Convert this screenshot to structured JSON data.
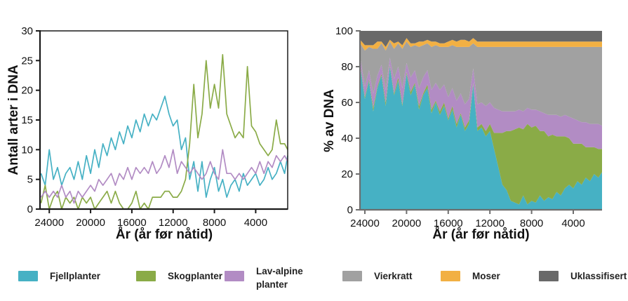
{
  "figure": {
    "background": "#ffffff"
  },
  "colors": {
    "fjellplanter": "#46b1c4",
    "skogplanter": "#8aab47",
    "lav_alpine": "#b28cc4",
    "vierkratt": "#a1a1a1",
    "moser": "#f2b043",
    "uklassifisert": "#696969",
    "axis_text": "#111111",
    "spine_left_chart": "#1a1a1a",
    "spine_right_chart": "#6e6e6e"
  },
  "legend": {
    "items": [
      {
        "id": "fjellplanter",
        "label": "Fjellplanter",
        "color": "#46b1c4"
      },
      {
        "id": "skogplanter",
        "label": "Skogplanter",
        "color": "#8aab47"
      },
      {
        "id": "lav-alpine",
        "label": "Lav-alpine planter",
        "color": "#b28cc4"
      },
      {
        "id": "vierkratt",
        "label": "Vierkratt",
        "color": "#a1a1a1"
      },
      {
        "id": "moser",
        "label": "Moser",
        "color": "#f2b043"
      },
      {
        "id": "uklassifisert",
        "label": "Uklassifisert",
        "color": "#696969"
      }
    ]
  },
  "chart_data": [
    {
      "type": "line",
      "title": "",
      "xlabel": "År (år før nåtid)",
      "ylabel": "Antall arter i DNA",
      "x_axis_reversed": true,
      "xlim": [
        24900,
        900
      ],
      "ylim": [
        0,
        30
      ],
      "xticks": [
        24000,
        20000,
        16000,
        12000,
        8000,
        4000
      ],
      "yticks": [
        0,
        5,
        10,
        15,
        20,
        25,
        30
      ],
      "grid": false,
      "x": [
        24800,
        24400,
        24000,
        23600,
        23200,
        22800,
        22400,
        22000,
        21600,
        21200,
        20800,
        20400,
        20000,
        19600,
        19200,
        18800,
        18400,
        18000,
        17600,
        17200,
        16800,
        16400,
        16000,
        15600,
        15200,
        14800,
        14400,
        14000,
        13600,
        13200,
        12800,
        12400,
        12000,
        11600,
        11200,
        10800,
        10400,
        10000,
        9600,
        9200,
        8800,
        8400,
        8000,
        7600,
        7200,
        6800,
        6400,
        6000,
        5600,
        5200,
        4800,
        4400,
        4000,
        3600,
        3200,
        2800,
        2400,
        2000,
        1600,
        1200,
        900
      ],
      "series": [
        {
          "name": "Fjellplanter",
          "color": "#46b1c4",
          "values": [
            6,
            4,
            10,
            5,
            7,
            4,
            6,
            7,
            5,
            8,
            5,
            9,
            6,
            10,
            7,
            11,
            9,
            12,
            10,
            13,
            11,
            14,
            12,
            15,
            13,
            16,
            14,
            16,
            15,
            17,
            19,
            16,
            14,
            15,
            10,
            12,
            5,
            8,
            3,
            8,
            2,
            5,
            7,
            3,
            5,
            2,
            4,
            5,
            3,
            6,
            4,
            5,
            6,
            4,
            5,
            7,
            5,
            6,
            8,
            6,
            9
          ]
        },
        {
          "name": "Skogplanter",
          "color": "#8aab47",
          "values": [
            1,
            4,
            0,
            2,
            3,
            0,
            2,
            1,
            2,
            0,
            2,
            1,
            2,
            0,
            1,
            2,
            3,
            1,
            3,
            1,
            0,
            0,
            1,
            3,
            0,
            1,
            0,
            2,
            2,
            2,
            3,
            3,
            2,
            2,
            3,
            5,
            11,
            21,
            12,
            16,
            25,
            17,
            21,
            17,
            26,
            16,
            14,
            12,
            13,
            12,
            24,
            14,
            13,
            11,
            10,
            9,
            10,
            15,
            11,
            11,
            10
          ]
        },
        {
          "name": "Lav-alpine planter",
          "color": "#b28cc4",
          "values": [
            2,
            3,
            2,
            3,
            2,
            4,
            2,
            3,
            1,
            3,
            2,
            3,
            4,
            3,
            5,
            4,
            5,
            6,
            4,
            6,
            5,
            7,
            5,
            7,
            6,
            7,
            6,
            8,
            6,
            7,
            9,
            7,
            10,
            6,
            8,
            7,
            6,
            7,
            6,
            5,
            6,
            8,
            6,
            5,
            10,
            6,
            6,
            5,
            6,
            5,
            6,
            7,
            6,
            8,
            6,
            8,
            7,
            9,
            8,
            9,
            8
          ]
        }
      ]
    },
    {
      "type": "area",
      "stacked": true,
      "normalized_to_100": true,
      "title": "",
      "xlabel": "År (år før nåtid)",
      "ylabel": "% av DNA",
      "x_axis_reversed": true,
      "xlim": [
        24470,
        1240
      ],
      "ylim": [
        0,
        100
      ],
      "xticks": [
        24000,
        20000,
        16000,
        12000,
        8000,
        4000
      ],
      "yticks": [
        0,
        20,
        40,
        60,
        80,
        100
      ],
      "grid": false,
      "x": [
        24450,
        24000,
        23600,
        23200,
        22800,
        22400,
        22000,
        21600,
        21200,
        20800,
        20400,
        20000,
        19600,
        19200,
        18800,
        18400,
        18000,
        17600,
        17200,
        16800,
        16400,
        16000,
        15600,
        15200,
        14800,
        14400,
        14000,
        13600,
        13200,
        12800,
        12400,
        12000,
        11600,
        11200,
        10800,
        10400,
        10000,
        9600,
        9200,
        8800,
        8400,
        8000,
        7600,
        7200,
        6800,
        6400,
        6000,
        5600,
        5200,
        4800,
        4400,
        4000,
        3600,
        3200,
        2800,
        2400,
        2000,
        1600,
        1240
      ],
      "series": [
        {
          "name": "Fjellplanter",
          "color": "#46b1c4",
          "values": [
            80,
            62,
            72,
            55,
            68,
            75,
            58,
            80,
            64,
            72,
            58,
            76,
            64,
            70,
            56,
            64,
            68,
            54,
            60,
            53,
            58,
            50,
            56,
            46,
            53,
            44,
            48,
            70,
            44,
            46,
            41,
            44,
            34,
            24,
            14,
            11,
            5,
            4,
            3,
            8,
            3,
            5,
            4,
            8,
            5,
            7,
            6,
            10,
            8,
            12,
            14,
            12,
            16,
            14,
            18,
            16,
            20,
            18,
            21
          ]
        },
        {
          "name": "Skogplanter",
          "color": "#8aab47",
          "values": [
            1,
            1,
            1,
            2,
            1,
            1,
            2,
            1,
            1,
            2,
            1,
            1,
            2,
            1,
            2,
            1,
            2,
            2,
            1,
            2,
            2,
            1,
            2,
            2,
            1,
            2,
            2,
            1,
            2,
            2,
            3,
            4,
            9,
            19,
            29,
            33,
            39,
            41,
            43,
            37,
            45,
            41,
            43,
            36,
            39,
            34,
            36,
            31,
            33,
            29,
            26,
            25,
            21,
            23,
            17,
            19,
            15,
            16,
            13
          ]
        },
        {
          "name": "Lav-alpine planter",
          "color": "#b28cc4",
          "values": [
            4,
            6,
            5,
            8,
            6,
            5,
            7,
            4,
            8,
            6,
            9,
            5,
            8,
            7,
            10,
            9,
            8,
            11,
            10,
            12,
            10,
            12,
            10,
            13,
            11,
            13,
            12,
            8,
            13,
            12,
            14,
            12,
            14,
            13,
            12,
            11,
            11,
            10,
            10,
            10,
            9,
            10,
            9,
            11,
            10,
            12,
            11,
            12,
            11,
            12,
            12,
            14,
            13,
            12,
            14,
            13,
            13,
            14,
            13
          ]
        },
        {
          "name": "Vierkratt",
          "color": "#a1a1a1",
          "values": [
            8,
            20,
            13,
            25,
            15,
            12,
            22,
            9,
            17,
            13,
            22,
            12,
            17,
            14,
            23,
            18,
            15,
            24,
            21,
            24,
            21,
            28,
            24,
            30,
            26,
            32,
            29,
            14,
            32,
            31,
            33,
            31,
            34,
            35,
            36,
            36,
            36,
            36,
            35,
            36,
            34,
            35,
            35,
            36,
            37,
            38,
            38,
            38,
            39,
            38,
            39,
            40,
            41,
            42,
            42,
            43,
            43,
            43,
            44
          ]
        },
        {
          "name": "Moser",
          "color": "#f2b043",
          "values": [
            2,
            3,
            1,
            2,
            4,
            1,
            2,
            1,
            3,
            1,
            2,
            2,
            2,
            1,
            3,
            2,
            2,
            3,
            2,
            2,
            2,
            3,
            3,
            3,
            4,
            4,
            3,
            3,
            3,
            3,
            3,
            3,
            3,
            3,
            3,
            3,
            3,
            3,
            3,
            3,
            3,
            3,
            3,
            3,
            3,
            3,
            3,
            3,
            3,
            3,
            3,
            3,
            3,
            3,
            3,
            3,
            3,
            3,
            3
          ]
        },
        {
          "name": "Uklassifisert",
          "color": "#696969",
          "values": [
            5,
            8,
            8,
            8,
            6,
            6,
            9,
            5,
            7,
            6,
            8,
            4,
            7,
            7,
            6,
            6,
            5,
            6,
            6,
            7,
            7,
            6,
            5,
            6,
            5,
            5,
            6,
            4,
            6,
            6,
            6,
            6,
            6,
            6,
            6,
            6,
            6,
            6,
            6,
            6,
            6,
            6,
            6,
            6,
            6,
            6,
            6,
            6,
            6,
            6,
            6,
            6,
            6,
            6,
            6,
            6,
            6,
            6,
            6
          ]
        }
      ]
    }
  ]
}
